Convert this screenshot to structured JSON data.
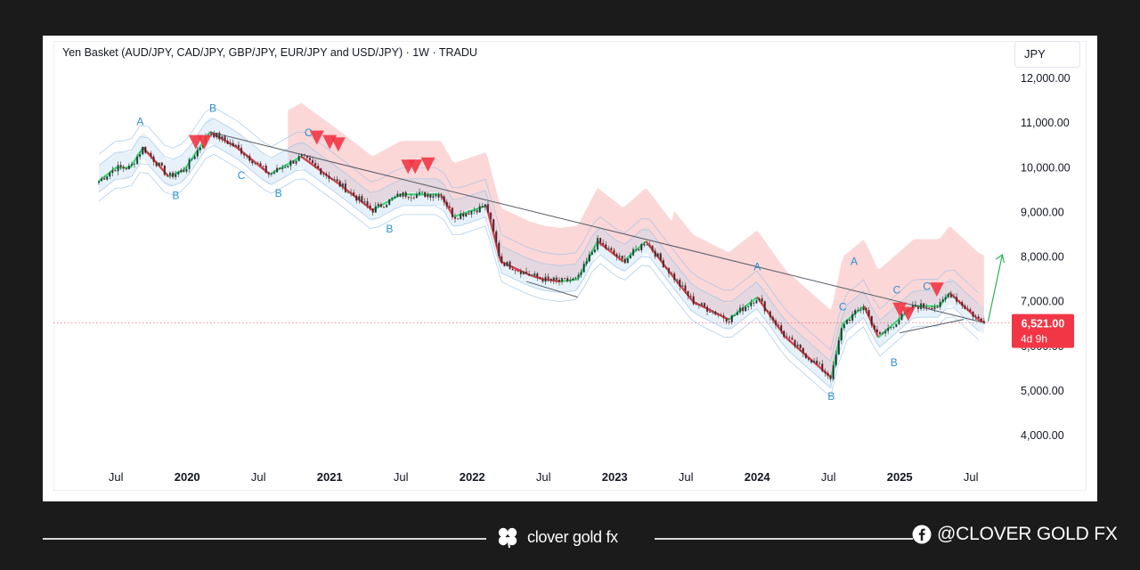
{
  "chart_data": {
    "type": "candlestick",
    "title": "Yen Basket (AUD/JPY, CAD/JPY, GBP/JPY, EUR/JPY and USD/JPY) · 1W · TRADU",
    "currency": "JPY",
    "ylim": [
      3500,
      12500
    ],
    "y_ticks": [
      {
        "value": 12000,
        "label": "12,000.00"
      },
      {
        "value": 11000,
        "label": "11,000.00"
      },
      {
        "value": 10000,
        "label": "10,000.00"
      },
      {
        "value": 9000,
        "label": "9,000.00"
      },
      {
        "value": 8000,
        "label": "8,000.00"
      },
      {
        "value": 7000,
        "label": "7,000.00"
      },
      {
        "value": 6000,
        "label": "6,000.00"
      },
      {
        "value": 5000,
        "label": "5,000.00"
      },
      {
        "value": 4000,
        "label": "4,000.00"
      }
    ],
    "x_range": [
      2019.33,
      2025.83
    ],
    "x_ticks": [
      {
        "t": 2019.5,
        "label": "Jul",
        "bold": false
      },
      {
        "t": 2020.0,
        "label": "2020",
        "bold": true
      },
      {
        "t": 2020.5,
        "label": "Jul",
        "bold": false
      },
      {
        "t": 2021.0,
        "label": "2021",
        "bold": true
      },
      {
        "t": 2021.5,
        "label": "Jul",
        "bold": false
      },
      {
        "t": 2022.0,
        "label": "2022",
        "bold": true
      },
      {
        "t": 2022.5,
        "label": "Jul",
        "bold": false
      },
      {
        "t": 2023.0,
        "label": "2023",
        "bold": true
      },
      {
        "t": 2023.5,
        "label": "Jul",
        "bold": false
      },
      {
        "t": 2024.0,
        "label": "2024",
        "bold": true
      },
      {
        "t": 2024.5,
        "label": "Jul",
        "bold": false
      },
      {
        "t": 2025.0,
        "label": "2025",
        "bold": true
      },
      {
        "t": 2025.5,
        "label": "Jul",
        "bold": false
      }
    ],
    "price_path": [
      [
        2019.38,
        9700
      ],
      [
        2019.5,
        10000
      ],
      [
        2019.6,
        10000
      ],
      [
        2019.69,
        10450
      ],
      [
        2019.87,
        9800
      ],
      [
        2019.98,
        9950
      ],
      [
        2020.16,
        10800
      ],
      [
        2020.35,
        10450
      ],
      [
        2020.58,
        9850
      ],
      [
        2020.8,
        10250
      ],
      [
        2021.08,
        9600
      ],
      [
        2021.3,
        9050
      ],
      [
        2021.5,
        9400
      ],
      [
        2021.78,
        9400
      ],
      [
        2021.87,
        8900
      ],
      [
        2022.1,
        9150
      ],
      [
        2022.2,
        7900
      ],
      [
        2022.4,
        7600
      ],
      [
        2022.5,
        7500
      ],
      [
        2022.62,
        7450
      ],
      [
        2022.74,
        7500
      ],
      [
        2022.88,
        8350
      ],
      [
        2023.06,
        7900
      ],
      [
        2023.22,
        8350
      ],
      [
        2023.4,
        7600
      ],
      [
        2023.55,
        7000
      ],
      [
        2023.8,
        6600
      ],
      [
        2024.0,
        7100
      ],
      [
        2024.2,
        6200
      ],
      [
        2024.52,
        5300
      ],
      [
        2024.6,
        6500
      ],
      [
        2024.75,
        6900
      ],
      [
        2024.85,
        6200
      ],
      [
        2025.1,
        6900
      ],
      [
        2025.28,
        6900
      ],
      [
        2025.35,
        7200
      ],
      [
        2025.55,
        6600
      ],
      [
        2025.6,
        6521
      ]
    ],
    "trendlines": [
      {
        "color": "#555a64",
        "points": [
          [
            2020.16,
            10800
          ],
          [
            2025.6,
            6521
          ]
        ]
      },
      {
        "color": "#555a64",
        "points": [
          [
            2022.38,
            7450
          ],
          [
            2022.74,
            7100
          ]
        ]
      },
      {
        "color": "#555a64",
        "points": [
          [
            2025.0,
            6300
          ],
          [
            2025.45,
            6600
          ]
        ]
      }
    ],
    "arrow": {
      "from": [
        2025.62,
        6550
      ],
      "to": [
        2025.72,
        8050
      ],
      "color": "#2ab45a"
    },
    "last_price": {
      "value": 6521,
      "label": "6,521.00",
      "countdown": "4d 9h",
      "color": "#f23645"
    },
    "wave_labels": [
      {
        "text": "A",
        "t": 2019.67,
        "v": 10950
      },
      {
        "text": "B",
        "t": 2020.18,
        "v": 11250
      },
      {
        "text": "B",
        "t": 2019.92,
        "v": 9300
      },
      {
        "text": "C",
        "t": 2020.38,
        "v": 9750
      },
      {
        "text": "B",
        "t": 2020.64,
        "v": 9350
      },
      {
        "text": "C",
        "t": 2020.85,
        "v": 10700
      },
      {
        "text": "B",
        "t": 2021.42,
        "v": 8550
      },
      {
        "text": "A",
        "t": 2024.0,
        "v": 7700
      },
      {
        "text": "A",
        "t": 2024.68,
        "v": 7820
      },
      {
        "text": "C",
        "t": 2024.6,
        "v": 6800
      },
      {
        "text": "C",
        "t": 2024.98,
        "v": 7180
      },
      {
        "text": "C",
        "t": 2025.19,
        "v": 7260
      },
      {
        "text": "B",
        "t": 2024.96,
        "v": 5560
      },
      {
        "text": "B",
        "t": 2024.52,
        "v": 4800
      }
    ],
    "sell_markers": [
      {
        "t": 2020.06,
        "v": 10550
      },
      {
        "t": 2020.12,
        "v": 10550
      },
      {
        "t": 2020.91,
        "v": 10650
      },
      {
        "t": 2021.0,
        "v": 10550
      },
      {
        "t": 2021.06,
        "v": 10500
      },
      {
        "t": 2021.55,
        "v": 10000
      },
      {
        "t": 2021.6,
        "v": 10000
      },
      {
        "t": 2021.69,
        "v": 10050
      },
      {
        "t": 2025.0,
        "v": 6800
      },
      {
        "t": 2025.06,
        "v": 6700
      },
      {
        "t": 2025.26,
        "v": 7250
      }
    ]
  },
  "footer": {
    "brand": "clover gold fx",
    "social": "@CLOVER GOLD FX"
  },
  "colors": {
    "bullish": "#22ab94",
    "bearish": "#f23645",
    "wave_label": "#2d8fd0",
    "cloud_red": "#f9c9cb",
    "cloud_blue": "#b9d7ef"
  }
}
